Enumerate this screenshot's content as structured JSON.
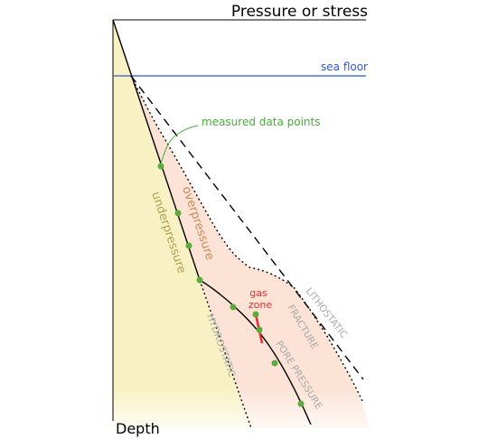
{
  "title": "Pressure or stress",
  "depth_label": "Depth",
  "sea_floor_label": "sea floor",
  "measured_label": "measured data points",
  "region_labels": {
    "underpressure": "underpressure",
    "overpressure": "overpressure"
  },
  "curve_labels": {
    "hydrostatic": "HYDROSTATIC",
    "fracture": "FRACTURE",
    "lithostatic": "LITHOSTATIC",
    "pore_pressure": "PORE PRESSURE"
  },
  "gas_zone_label": [
    "gas",
    "zone"
  ],
  "colors": {
    "underpressure_fill": "#f8f1c4",
    "overpressure_fill": "#fce3d6",
    "sea_floor": "#3355cc",
    "data_point": "#5cab3c",
    "gas_zone": "#e03030",
    "underpressure_text": "#b0a050",
    "overpressure_text": "#c98a5a",
    "curve_text": "#a8a8a8",
    "measured_text": "#4aaa3a",
    "axis": "#000000"
  }
}
